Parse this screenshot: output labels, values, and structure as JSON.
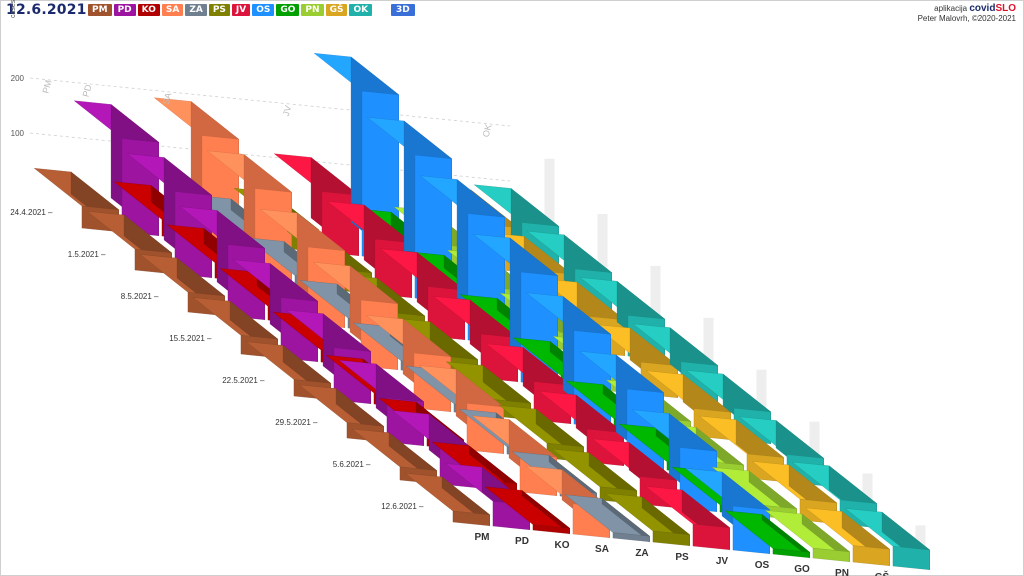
{
  "header": {
    "date": "12.6.2021",
    "mode_label": "3D",
    "app_prefix": "aplikacija",
    "app_brand_a": "covid",
    "app_brand_b": "SLO",
    "author": "Peter Malovrh, ©2020-2021"
  },
  "legend": [
    {
      "code": "PM",
      "color": "#a0522d"
    },
    {
      "code": "PD",
      "color": "#9c14a0"
    },
    {
      "code": "KO",
      "color": "#b00000"
    },
    {
      "code": "SA",
      "color": "#ff7f50"
    },
    {
      "code": "ZA",
      "color": "#708090"
    },
    {
      "code": "PS",
      "color": "#808000"
    },
    {
      "code": "JV",
      "color": "#dc143c"
    },
    {
      "code": "OS",
      "color": "#1e90ff"
    },
    {
      "code": "GO",
      "color": "#00a000"
    },
    {
      "code": "PN",
      "color": "#9acd32"
    },
    {
      "code": "GŠ",
      "color": "#daa520"
    },
    {
      "code": "OK",
      "color": "#20b2aa"
    }
  ],
  "chart_data": {
    "type": "bar",
    "style": "3d",
    "ylabel": "cases",
    "y_ticks": [
      100,
      200
    ],
    "dates": [
      "24.4.2021",
      "1.5.2021",
      "8.5.2021",
      "15.5.2021",
      "22.5.2021",
      "29.5.2021",
      "5.6.2021",
      "12.6.2021"
    ],
    "categories": [
      "PM",
      "PD",
      "KO",
      "SA",
      "ZA",
      "PS",
      "JV",
      "OS",
      "GO",
      "PN",
      "GŠ",
      "OK"
    ],
    "back_labels": [
      "PM",
      "PD",
      "SA",
      "JV",
      "OK"
    ],
    "series": [
      {
        "name": "PM",
        "values": [
          40,
          38,
          36,
          34,
          30,
          28,
          24,
          20
        ]
      },
      {
        "name": "PD",
        "values": [
          170,
          150,
          130,
          110,
          95,
          80,
          65,
          45
        ]
      },
      {
        "name": "KO",
        "values": [
          30,
          28,
          25,
          22,
          20,
          18,
          15,
          10
        ]
      },
      {
        "name": "SA",
        "values": [
          190,
          170,
          140,
          120,
          100,
          85,
          70,
          55
        ]
      },
      {
        "name": "ZA",
        "values": [
          20,
          19,
          18,
          17,
          15,
          13,
          12,
          10
        ]
      },
      {
        "name": "PS",
        "values": [
          40,
          38,
          36,
          33,
          30,
          27,
          24,
          20
        ]
      },
      {
        "name": "JV",
        "values": [
          110,
          100,
          90,
          80,
          70,
          60,
          50,
          40
        ]
      },
      {
        "name": "OS",
        "values": [
          300,
          260,
          230,
          200,
          170,
          140,
          110,
          80
        ]
      },
      {
        "name": "GO",
        "values": [
          25,
          23,
          21,
          19,
          17,
          15,
          13,
          10
        ]
      },
      {
        "name": "PN",
        "values": [
          35,
          33,
          31,
          29,
          26,
          23,
          20,
          18
        ]
      },
      {
        "name": "GŠ",
        "values": [
          80,
          72,
          65,
          58,
          50,
          44,
          38,
          30
        ]
      },
      {
        "name": "OK",
        "values": [
          90,
          82,
          74,
          66,
          58,
          50,
          44,
          36
        ]
      }
    ]
  }
}
